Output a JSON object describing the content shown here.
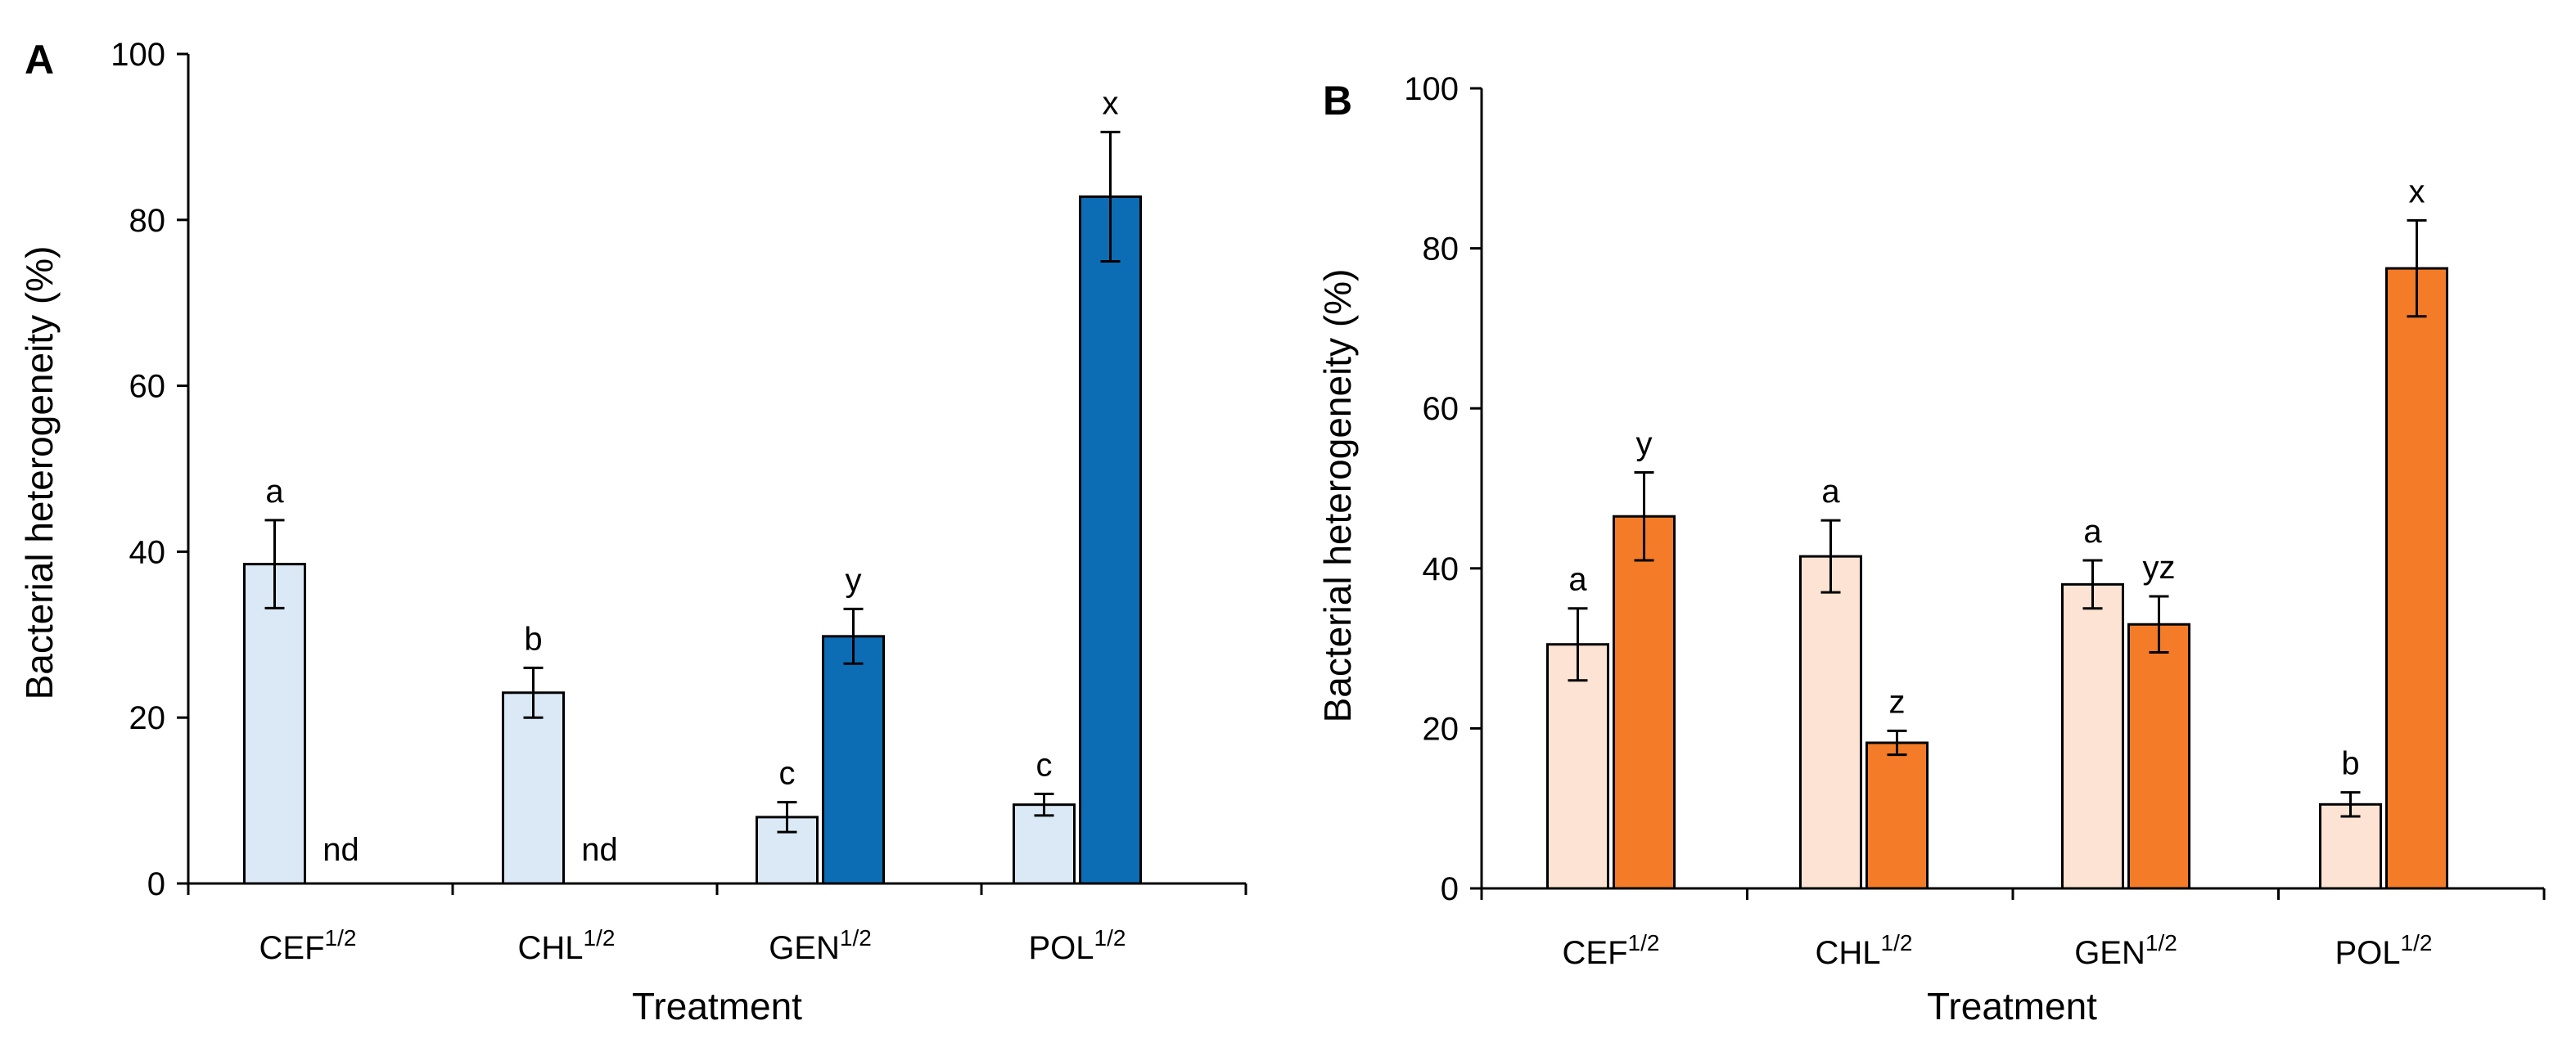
{
  "chart_data": [
    {
      "panel": "A",
      "type": "bar",
      "xlabel": "Treatment",
      "ylabel": "Bacterial heterogeneity (%)",
      "ylim": [
        0,
        100
      ],
      "yticks": [
        "0",
        "20",
        "40",
        "60",
        "80",
        "100"
      ],
      "categories": [
        {
          "base": "CEF",
          "sup": "1/2"
        },
        {
          "base": "CHL",
          "sup": "1/2"
        },
        {
          "base": "GEN",
          "sup": "1/2"
        },
        {
          "base": "POL",
          "sup": "1/2"
        }
      ],
      "series": [
        {
          "color": "#dbe9f6",
          "values": [
            38.5,
            23,
            8,
            9.5
          ],
          "errors": [
            5.3,
            3,
            1.8,
            1.3
          ],
          "labels": [
            "a",
            "b",
            "c",
            "c"
          ]
        },
        {
          "color": "#0c6db5",
          "values": [
            0,
            0,
            29.8,
            82.8
          ],
          "errors": [
            0,
            0,
            3.3,
            7.8
          ],
          "labels": [
            "nd",
            "nd",
            "y",
            "x"
          ]
        }
      ],
      "grid": false,
      "legend": "none"
    },
    {
      "panel": "B",
      "type": "bar",
      "xlabel": "Treatment",
      "ylabel": "Bacterial heterogeneity (%)",
      "ylim": [
        0,
        100
      ],
      "yticks": [
        "0",
        "20",
        "40",
        "60",
        "80",
        "100"
      ],
      "categories": [
        {
          "base": "CEF",
          "sup": "1/2"
        },
        {
          "base": "CHL",
          "sup": "1/2"
        },
        {
          "base": "GEN",
          "sup": "1/2"
        },
        {
          "base": "POL",
          "sup": "1/2"
        }
      ],
      "series": [
        {
          "color": "#fce3d3",
          "values": [
            30.5,
            41.5,
            38,
            10.5
          ],
          "errors": [
            4.5,
            4.5,
            3,
            1.5
          ],
          "labels": [
            "a",
            "a",
            "a",
            "b"
          ]
        },
        {
          "color": "#f47b27",
          "values": [
            46.5,
            18.2,
            33,
            77.5
          ],
          "errors": [
            5.5,
            1.5,
            3.5,
            6
          ],
          "labels": [
            "y",
            "z",
            "yz",
            "x"
          ]
        }
      ],
      "grid": false,
      "legend": "none"
    }
  ]
}
